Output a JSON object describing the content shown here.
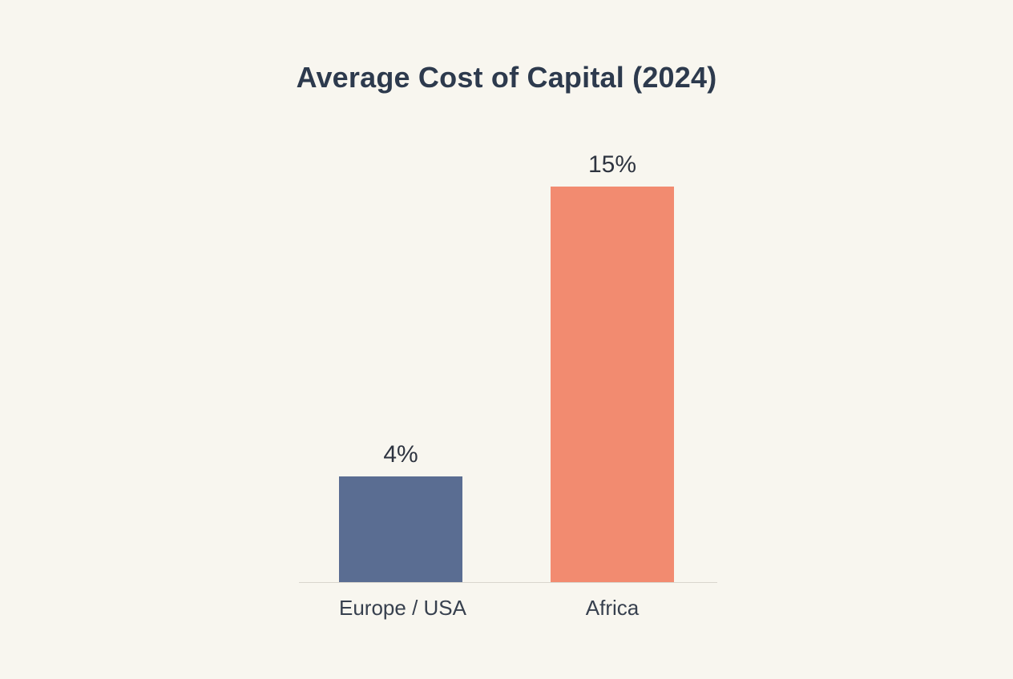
{
  "chart_data": {
    "type": "bar",
    "title": "Average Cost of Capital (2024)",
    "categories": [
      "Europe / USA",
      "Africa"
    ],
    "values": [
      4,
      15
    ],
    "value_labels": [
      "4%",
      "15%"
    ],
    "xlabel": "",
    "ylabel": "",
    "ylim": [
      0,
      15
    ],
    "grid": false,
    "legend": null,
    "bar_colors": [
      "#5a6d92",
      "#f28b70"
    ]
  },
  "colors": {
    "background": "#f8f6ef",
    "title_text": "#2d3a4d",
    "label_text": "#37404e",
    "baseline": "#d9d6cd"
  }
}
